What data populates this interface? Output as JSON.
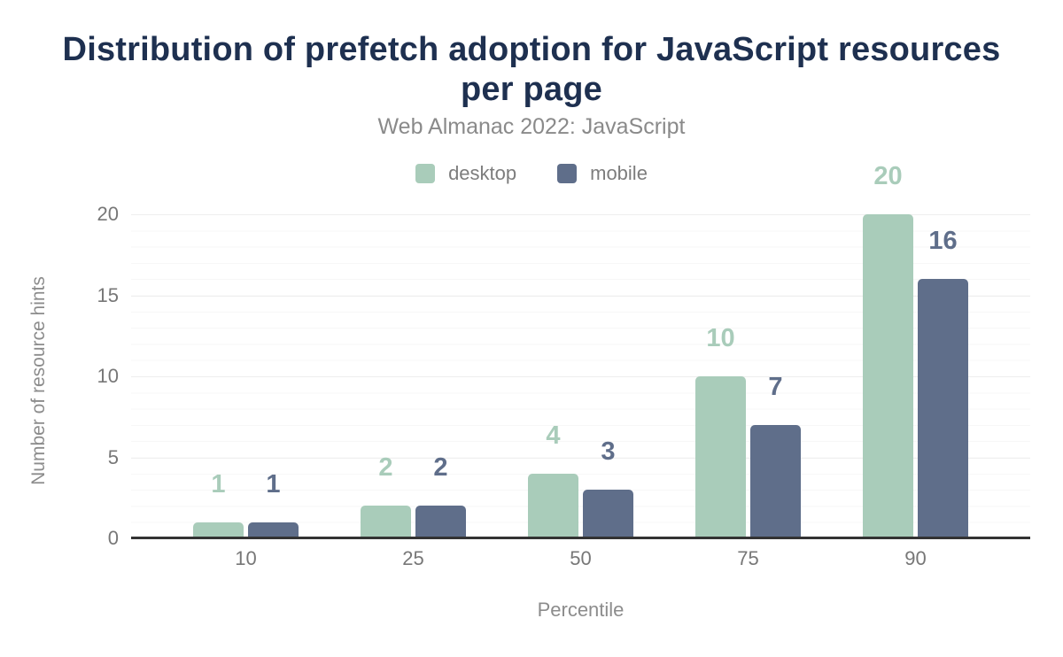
{
  "chart_data": {
    "type": "bar",
    "title": "Distribution of prefetch adoption for JavaScript resources per page",
    "subtitle": "Web Almanac 2022: JavaScript",
    "xlabel": "Percentile",
    "ylabel": "Number of resource hints",
    "categories": [
      "10",
      "25",
      "50",
      "75",
      "90"
    ],
    "series": [
      {
        "name": "desktop",
        "color": "#a9ccba",
        "values": [
          1,
          2,
          4,
          10,
          20
        ]
      },
      {
        "name": "mobile",
        "color": "#5f6e8a",
        "values": [
          1,
          2,
          3,
          7,
          16
        ]
      }
    ],
    "ylim": [
      0,
      20
    ],
    "yticks": [
      0,
      5,
      10,
      15,
      20
    ],
    "grid": "horizontal: minor every 1 unit, major every 5 units",
    "legend_position": "top-center",
    "data_labels": "shown above each bar in series color"
  },
  "colors": {
    "title": "#1e3050",
    "subtitle": "#8a8a8a",
    "tick_text": "#777777",
    "axis_title_text": "#8c8c8c",
    "legend_text": "#7d7d7d",
    "axis_line": "#333333",
    "grid_major": "#eeeeee",
    "grid_minor": "#f7f7f7",
    "background": "#ffffff"
  }
}
